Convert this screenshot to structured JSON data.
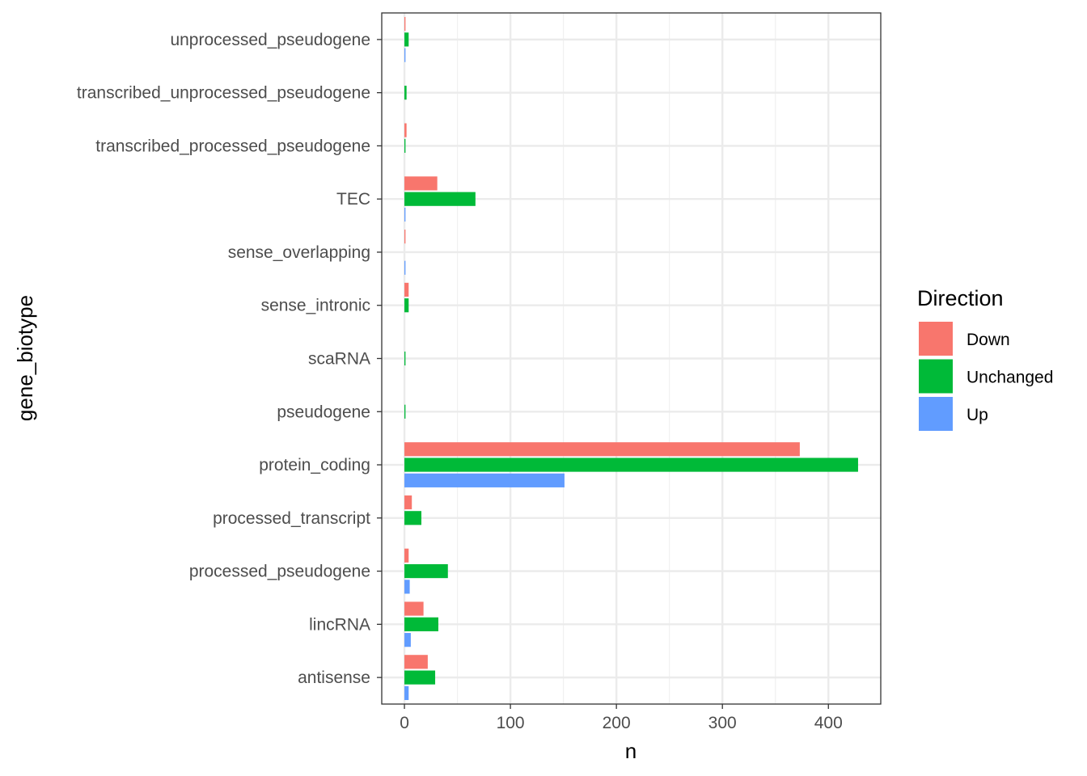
{
  "chart_data": {
    "type": "bar",
    "orientation": "horizontal",
    "title": "",
    "xlabel": "n",
    "ylabel": "gene_biotype",
    "xlim": [
      -21.4,
      449.4
    ],
    "x_ticks": [
      0,
      100,
      200,
      300,
      400
    ],
    "grid": true,
    "legend": {
      "title": "Direction",
      "placement": "right"
    },
    "categories": [
      "antisense",
      "lincRNA",
      "processed_pseudogene",
      "processed_transcript",
      "protein_coding",
      "pseudogene",
      "scaRNA",
      "sense_intronic",
      "sense_overlapping",
      "TEC",
      "transcribed_processed_pseudogene",
      "transcribed_unprocessed_pseudogene",
      "unprocessed_pseudogene"
    ],
    "series": [
      {
        "name": "Down",
        "color": "#F8766D",
        "values": [
          22,
          18,
          4,
          7,
          373,
          0,
          0,
          4,
          1,
          31,
          2,
          0,
          1
        ]
      },
      {
        "name": "Unchanged",
        "color": "#00BA38",
        "values": [
          29,
          32,
          41,
          16,
          428,
          1,
          1,
          4,
          0,
          67,
          1,
          2,
          4
        ]
      },
      {
        "name": "Up",
        "color": "#619CFF",
        "values": [
          4,
          6,
          5,
          0,
          151,
          0,
          0,
          0,
          1,
          1,
          0,
          0,
          1
        ]
      }
    ]
  }
}
